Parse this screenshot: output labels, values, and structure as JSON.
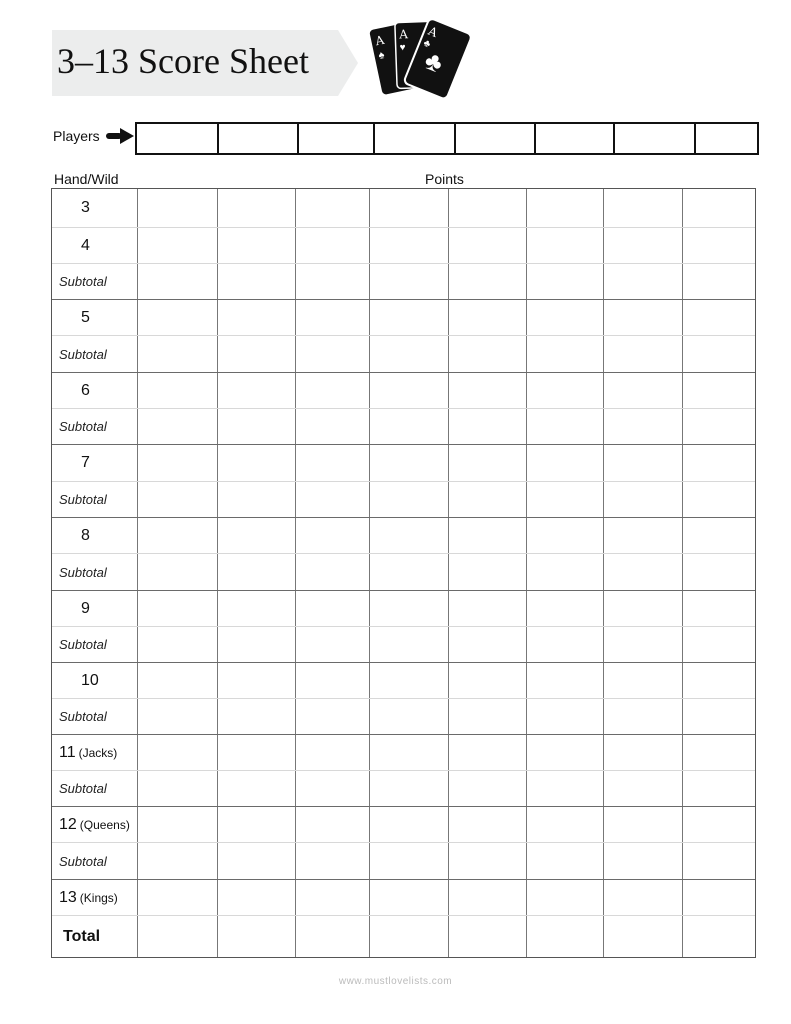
{
  "title": "3–13 Score Sheet",
  "players_label": "Players",
  "player_columns": 8,
  "hand_label": "Hand/Wild",
  "points_label": "Points",
  "rows": [
    {
      "label": "3",
      "type": "hand",
      "group_start": true
    },
    {
      "label": "4",
      "type": "hand",
      "group_start": false
    },
    {
      "label": "Subtotal",
      "type": "subtotal",
      "group_start": false
    },
    {
      "label": "5",
      "type": "hand",
      "group_start": true
    },
    {
      "label": "Subtotal",
      "type": "subtotal",
      "group_start": false
    },
    {
      "label": "6",
      "type": "hand",
      "group_start": true
    },
    {
      "label": "Subtotal",
      "type": "subtotal",
      "group_start": false
    },
    {
      "label": "7",
      "type": "hand",
      "group_start": true
    },
    {
      "label": "Subtotal",
      "type": "subtotal",
      "group_start": false
    },
    {
      "label": "8",
      "type": "hand",
      "group_start": true
    },
    {
      "label": "Subtotal",
      "type": "subtotal",
      "group_start": false
    },
    {
      "label": "9",
      "type": "hand",
      "group_start": true
    },
    {
      "label": "Subtotal",
      "type": "subtotal",
      "group_start": false
    },
    {
      "label": "10",
      "type": "hand",
      "group_start": true
    },
    {
      "label": "Subtotal",
      "type": "subtotal",
      "group_start": false
    },
    {
      "label": "11",
      "note": "(Jacks)",
      "type": "hand",
      "group_start": true
    },
    {
      "label": "Subtotal",
      "type": "subtotal",
      "group_start": false
    },
    {
      "label": "12",
      "note": "(Queens)",
      "type": "hand",
      "group_start": true
    },
    {
      "label": "Subtotal",
      "type": "subtotal",
      "group_start": false
    },
    {
      "label": "13",
      "note": "(Kings)",
      "type": "hand",
      "group_start": true
    },
    {
      "label": "Total",
      "type": "total",
      "group_start": false
    }
  ],
  "footer": "www.mustlovelists.com",
  "icons": {
    "cards": "playing-cards-icon",
    "arrow": "arrow-right-icon"
  },
  "colors": {
    "banner": "#eceded",
    "ink": "#111111"
  }
}
